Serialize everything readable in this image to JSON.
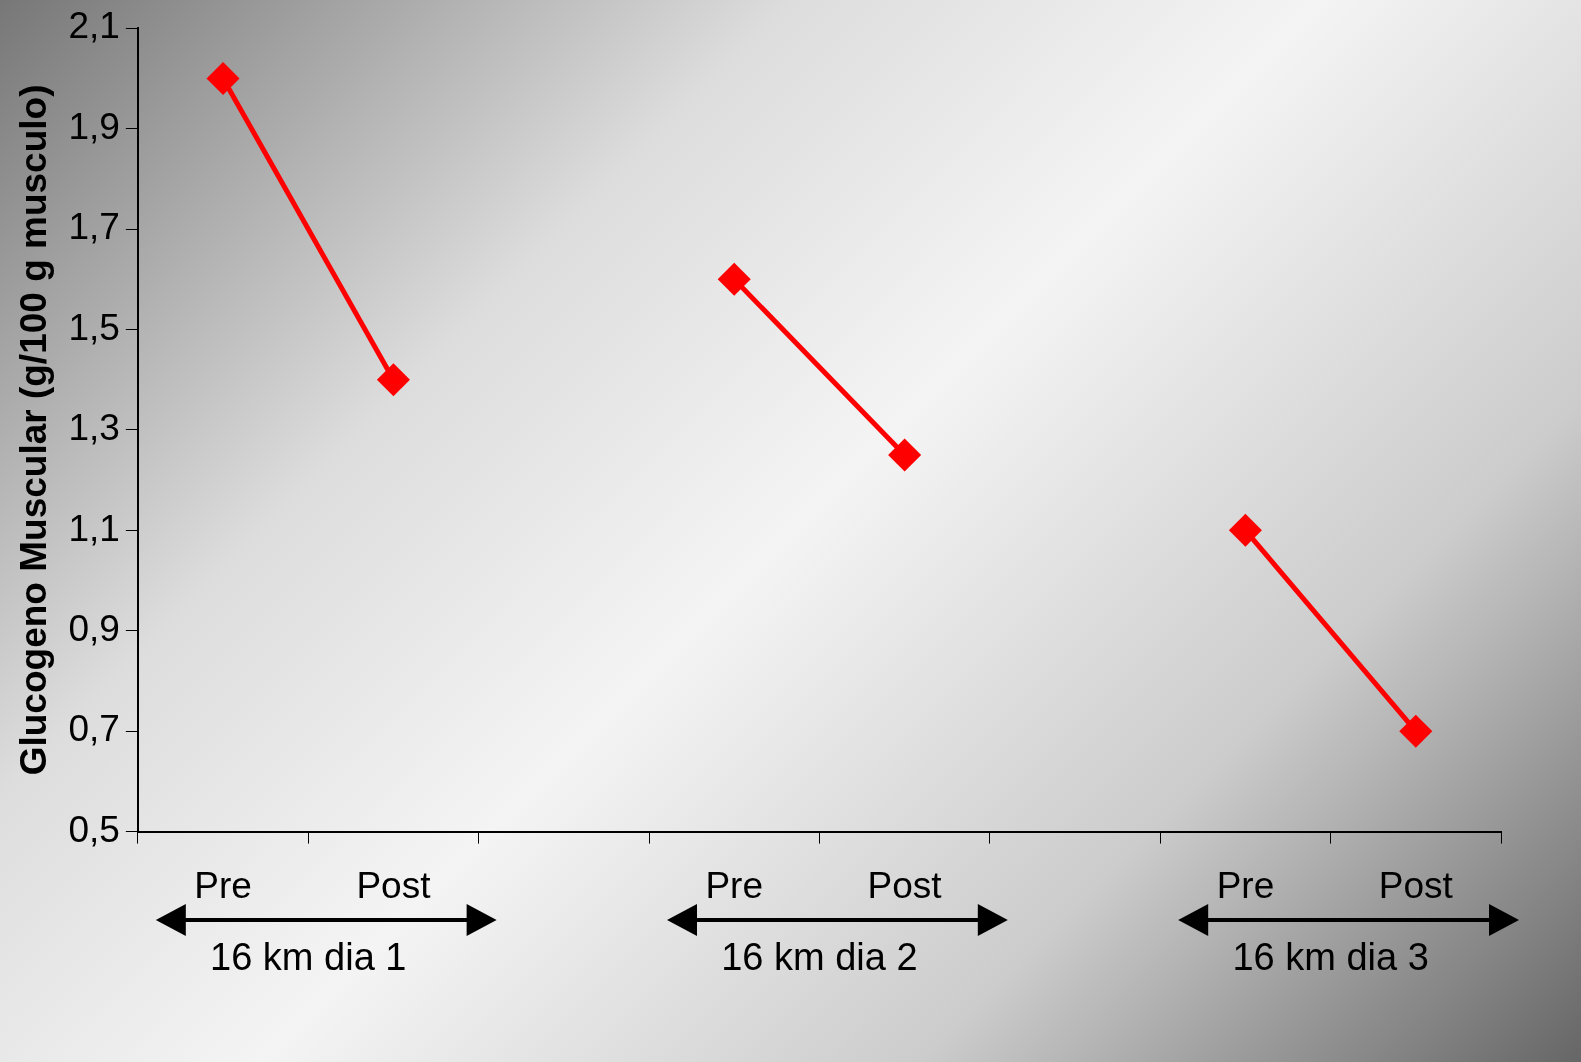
{
  "chart_data": {
    "type": "line",
    "ylabel": "Glucogeno Muscular (g/100 g musculo)",
    "categories": [
      "Pre",
      "Post",
      null,
      "Pre",
      "Post",
      null,
      "Pre",
      "Post"
    ],
    "series": [
      {
        "color": "#ff0000",
        "values": [
          2.0,
          1.4,
          null,
          1.6,
          1.25,
          null,
          1.1,
          0.7
        ]
      }
    ],
    "ylim": [
      0.5,
      2.1
    ],
    "yticks": [
      {
        "value": 0.5,
        "label": "0,5"
      },
      {
        "value": 0.7,
        "label": "0,7"
      },
      {
        "value": 0.9,
        "label": "0,9"
      },
      {
        "value": 1.1,
        "label": "1,1"
      },
      {
        "value": 1.3,
        "label": "1,3"
      },
      {
        "value": 1.5,
        "label": "1,5"
      },
      {
        "value": 1.7,
        "label": "1,7"
      },
      {
        "value": 1.9,
        "label": "1,9"
      },
      {
        "value": 2.1,
        "label": "2,1"
      }
    ],
    "annotations": [
      "16 km dia 1",
      "16 km dia 2",
      "16 km dia 3"
    ],
    "grid": false,
    "legend": false,
    "marker": "diamond",
    "line_style": "solid"
  }
}
